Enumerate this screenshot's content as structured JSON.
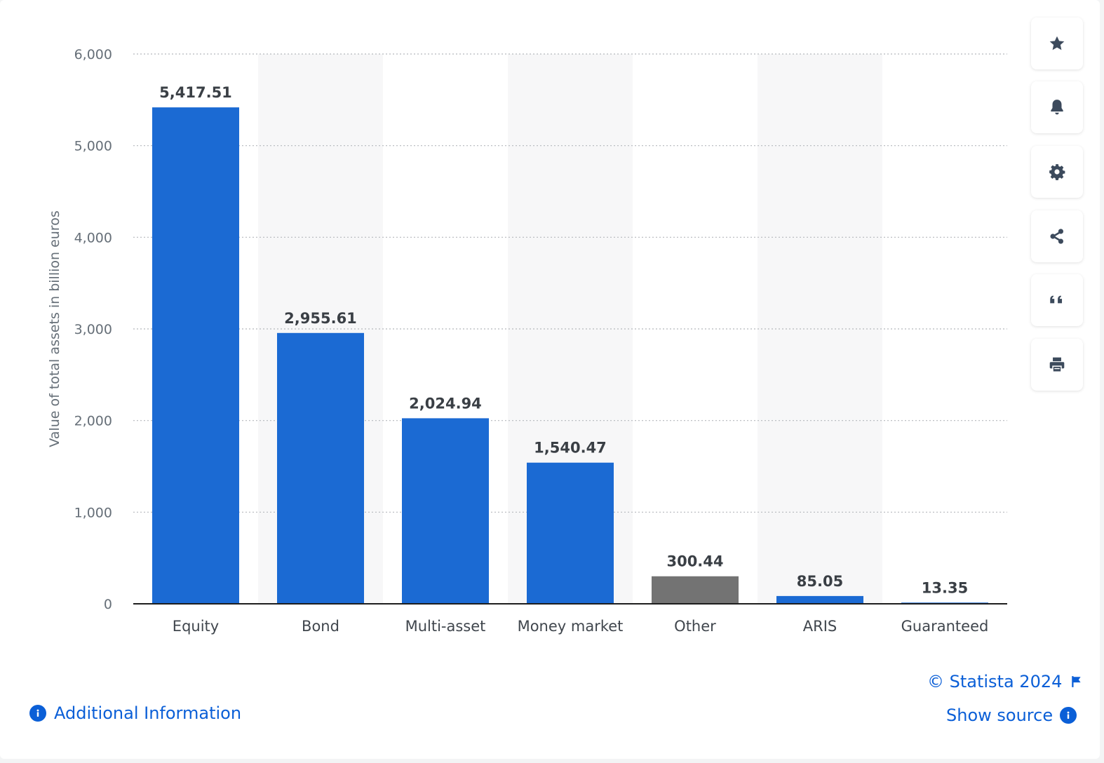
{
  "chart_data": {
    "type": "bar",
    "title": "",
    "xlabel": "",
    "ylabel": "Value of total assets in billion euros",
    "ylim": [
      0,
      6000
    ],
    "yticks": [
      0,
      1000,
      2000,
      3000,
      4000,
      5000,
      6000
    ],
    "ytick_labels": [
      "0",
      "1,000",
      "2,000",
      "3,000",
      "4,000",
      "5,000",
      "6,000"
    ],
    "categories": [
      "Equity",
      "Bond",
      "Multi-asset",
      "Money market",
      "Other",
      "ARIS",
      "Guaranteed"
    ],
    "values": [
      5417.51,
      2955.61,
      2024.94,
      1540.47,
      300.44,
      85.05,
      13.35
    ],
    "value_labels": [
      "5,417.51",
      "2,955.61",
      "2,024.94",
      "1,540.47",
      "300.44",
      "85.05",
      "13.35"
    ],
    "bar_colors": [
      "#1b6ad3",
      "#1b6ad3",
      "#1b6ad3",
      "#1b6ad3",
      "#737373",
      "#1b6ad3",
      "#1b6ad3"
    ],
    "grid": true
  },
  "toolbar": {
    "items": [
      {
        "name": "favorite",
        "icon": "star-icon"
      },
      {
        "name": "notify",
        "icon": "bell-icon"
      },
      {
        "name": "settings",
        "icon": "gear-icon"
      },
      {
        "name": "share",
        "icon": "share-icon"
      },
      {
        "name": "cite",
        "icon": "quote-icon"
      },
      {
        "name": "print",
        "icon": "printer-icon"
      }
    ]
  },
  "footer": {
    "copyright": "© Statista 2024",
    "show_source": "Show source",
    "additional_info": "Additional Information"
  },
  "colors": {
    "accent": "#0b5fd7",
    "bar_primary": "#1b6ad3",
    "bar_highlight": "#737373"
  }
}
